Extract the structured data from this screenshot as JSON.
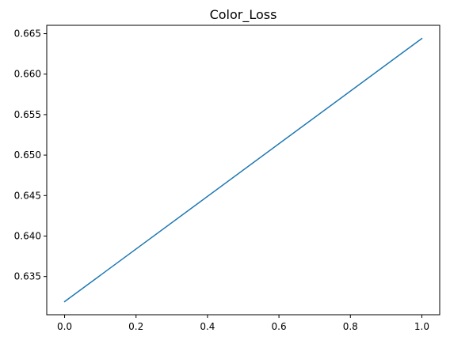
{
  "chart_data": {
    "type": "line",
    "title": "Color_Loss",
    "xlabel": "",
    "ylabel": "",
    "x": [
      0.0,
      1.0
    ],
    "series": [
      {
        "values": [
          0.6319,
          0.6644
        ],
        "color": "#1f77b4"
      }
    ],
    "xlim": [
      -0.05,
      1.05
    ],
    "ylim": [
      0.63028,
      0.66603
    ],
    "xticks": [
      0.0,
      0.2,
      0.4,
      0.6,
      0.8,
      1.0
    ],
    "xtick_labels": [
      "0.0",
      "0.2",
      "0.4",
      "0.6",
      "0.8",
      "1.0"
    ],
    "yticks": [
      0.635,
      0.64,
      0.645,
      0.65,
      0.655,
      0.66,
      0.665
    ],
    "ytick_labels": [
      "0.635",
      "0.640",
      "0.645",
      "0.650",
      "0.655",
      "0.660",
      "0.665"
    ],
    "grid": false,
    "legend": "none"
  }
}
